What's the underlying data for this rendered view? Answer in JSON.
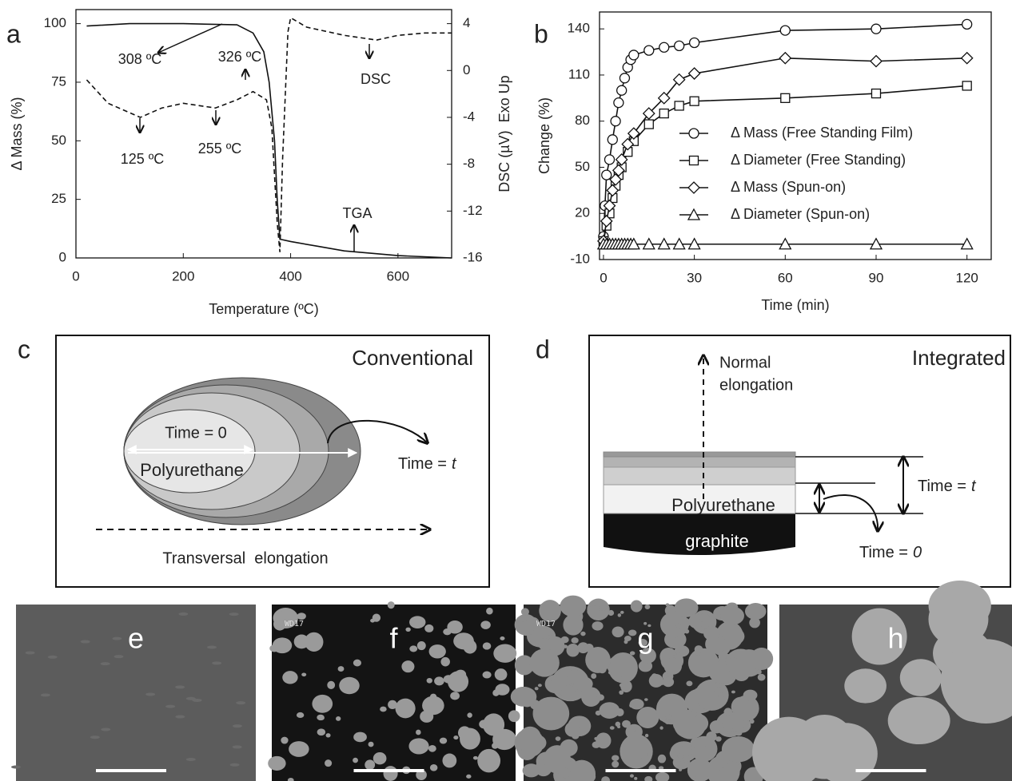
{
  "chart_data": [
    {
      "type": "line",
      "panel_label": "a",
      "x_label": "Temperature (ºC)",
      "y_label": "Δ Mass (%)",
      "y2_label": "DSC (µV)  Exo Up",
      "xlim": [
        0,
        700
      ],
      "xticks": [
        0,
        200,
        400,
        600
      ],
      "ylim": [
        0,
        106
      ],
      "yticks": [
        0,
        25,
        50,
        75,
        100
      ],
      "y2lim": [
        -16,
        5.2
      ],
      "y2ticks": [
        -16,
        -12,
        -8,
        -4,
        0,
        4
      ],
      "annotations": [
        "308 ºC",
        "326 ºC",
        "125 ºC",
        "255 ºC"
      ],
      "series": [
        {
          "name": "TGA",
          "color": "#111111",
          "line_style": "solid",
          "x": [
            20,
            100,
            200,
            300,
            330,
            350,
            360,
            370,
            375,
            380,
            400,
            450,
            500,
            600,
            700
          ],
          "values": [
            99,
            100,
            100,
            99.5,
            96,
            88,
            75,
            50,
            25,
            8,
            7,
            5,
            3,
            1,
            0
          ]
        },
        {
          "name": "DSC",
          "color": "#111111",
          "line_style": "dashed",
          "axis": "y2",
          "x": [
            20,
            60,
            120,
            160,
            200,
            260,
            300,
            330,
            355,
            365,
            375,
            380,
            385,
            395,
            400,
            430,
            500,
            560,
            600,
            650,
            700
          ],
          "values": [
            -0.8,
            -2.8,
            -4.0,
            -3.2,
            -2.8,
            -3.2,
            -2.5,
            -1.8,
            -2.5,
            -4.9,
            -13,
            -15.5,
            -7.6,
            3.3,
            4.5,
            3.7,
            3.0,
            2.6,
            3.0,
            3.2,
            3.2
          ]
        }
      ]
    },
    {
      "type": "line",
      "panel_label": "b",
      "x_label": "Time (min)",
      "y_label": "Change (%)",
      "xlim": [
        -1.3,
        128
      ],
      "xticks": [
        0,
        30,
        60,
        90,
        120
      ],
      "ylim": [
        -10,
        151
      ],
      "yticks": [
        -10,
        20,
        50,
        80,
        110,
        140
      ],
      "legend": "center-right",
      "series": [
        {
          "name": "Δ Mass (Free Standing Film)",
          "color": "#111111",
          "marker": "circle",
          "x": [
            0,
            0.5,
            1,
            2,
            3,
            4,
            5,
            6,
            7,
            8,
            9,
            10,
            15,
            20,
            25,
            30,
            60,
            90,
            120
          ],
          "values": [
            5,
            25,
            45,
            55,
            68,
            80,
            92,
            100,
            108,
            115,
            120,
            123,
            126,
            128,
            129,
            131,
            139,
            140,
            143
          ]
        },
        {
          "name": "Δ Diameter (Free Standing)",
          "color": "#111111",
          "marker": "square",
          "x": [
            0,
            1,
            2,
            3,
            4,
            5,
            6,
            8,
            10,
            15,
            20,
            25,
            30,
            60,
            90,
            120
          ],
          "values": [
            2,
            12,
            20,
            30,
            38,
            45,
            50,
            60,
            67,
            78,
            85,
            90,
            93,
            95,
            98,
            103
          ]
        },
        {
          "name": "Δ Mass (Spun-on)",
          "color": "#111111",
          "marker": "diamond",
          "x": [
            0,
            1,
            2,
            3,
            4,
            5,
            6,
            8,
            10,
            15,
            20,
            25,
            30,
            60,
            90,
            120
          ],
          "values": [
            2,
            15,
            25,
            35,
            42,
            48,
            55,
            65,
            72,
            85,
            95,
            107,
            111,
            121,
            119,
            121
          ]
        },
        {
          "name": "Δ Diameter (Spun-on)",
          "color": "#111111",
          "marker": "triangle",
          "x": [
            0,
            1,
            2,
            3,
            4,
            5,
            6,
            7,
            8,
            9,
            10,
            15,
            20,
            25,
            30,
            60,
            90,
            120
          ],
          "values": [
            0,
            0,
            0,
            0,
            0,
            0,
            0,
            0,
            0,
            0,
            0,
            0,
            0,
            0,
            0,
            0,
            0,
            0
          ]
        }
      ]
    }
  ],
  "diagram_c": {
    "label": "c",
    "title": "Conventional",
    "time_0": "Time = 0",
    "material": "Polyurethane",
    "time_t": {
      "text": "Time =",
      "var": "t"
    },
    "elongation": "Transversal  elongation"
  },
  "diagram_d": {
    "label": "d",
    "title": "Integrated",
    "elongation": [
      "Normal",
      "elongation"
    ],
    "material": "Polyurethane",
    "substrate": "graphite",
    "time_t": {
      "text": "Time =",
      "var": "t"
    },
    "time_0": {
      "text": "Time =",
      "var": "0"
    }
  },
  "micrographs": [
    {
      "label": "e"
    },
    {
      "label": "f",
      "stamp": "WD17"
    },
    {
      "label": "g",
      "stamp": "WD17"
    },
    {
      "label": "h"
    }
  ]
}
